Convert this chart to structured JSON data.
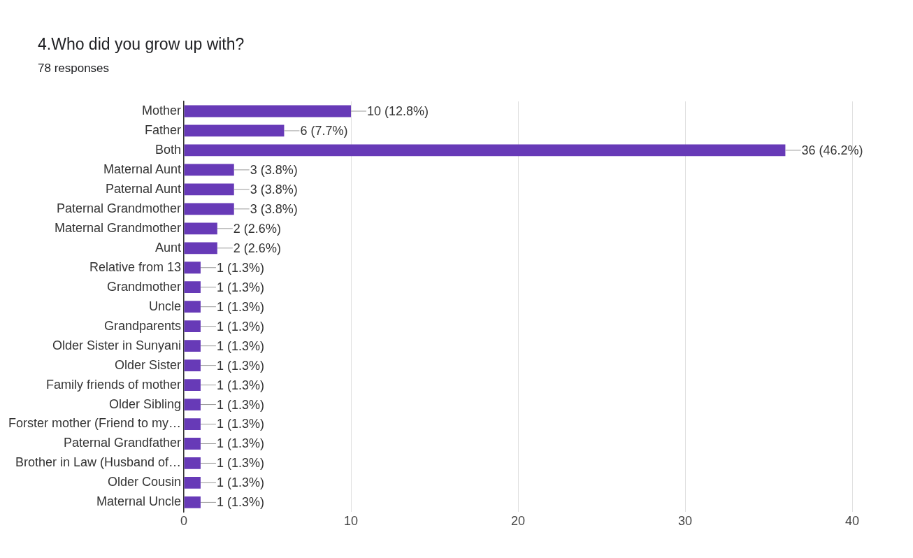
{
  "chart_data": {
    "type": "bar",
    "orientation": "horizontal",
    "title": "4.Who did you grow up with?",
    "subtitle": "78 responses",
    "categories": [
      "Mother",
      "Father",
      "Both",
      "Maternal Aunt",
      "Paternal Aunt",
      "Paternal Grandmother",
      "Maternal Grandmother",
      "Aunt",
      "Relative from 13",
      "Grandmother",
      "Uncle",
      "Grandparents",
      "Older Sister in Sunyani",
      "Older Sister",
      "Family friends of mother",
      "Older Sibling",
      "Forster mother (Friend to my…",
      "Paternal Grandfather",
      "Brother in Law (Husband of…",
      "Older Cousin",
      "Maternal Uncle"
    ],
    "values": [
      10,
      6,
      36,
      3,
      3,
      3,
      2,
      2,
      1,
      1,
      1,
      1,
      1,
      1,
      1,
      1,
      1,
      1,
      1,
      1,
      1
    ],
    "value_labels": [
      "10 (12.8%)",
      "6 (7.7%)",
      "36 (46.2%)",
      "3 (3.8%)",
      "3 (3.8%)",
      "3 (3.8%)",
      "2 (2.6%)",
      "2 (2.6%)",
      "1 (1.3%)",
      "1 (1.3%)",
      "1 (1.3%)",
      "1 (1.3%)",
      "1 (1.3%)",
      "1 (1.3%)",
      "1 (1.3%)",
      "1 (1.3%)",
      "1 (1.3%)",
      "1 (1.3%)",
      "1 (1.3%)",
      "1 (1.3%)",
      "1 (1.3%)"
    ],
    "color": "#673ab7",
    "xlim": [
      0,
      40
    ],
    "xticks": [
      0,
      10,
      20,
      30,
      40
    ],
    "grid": "x",
    "legend": false
  }
}
